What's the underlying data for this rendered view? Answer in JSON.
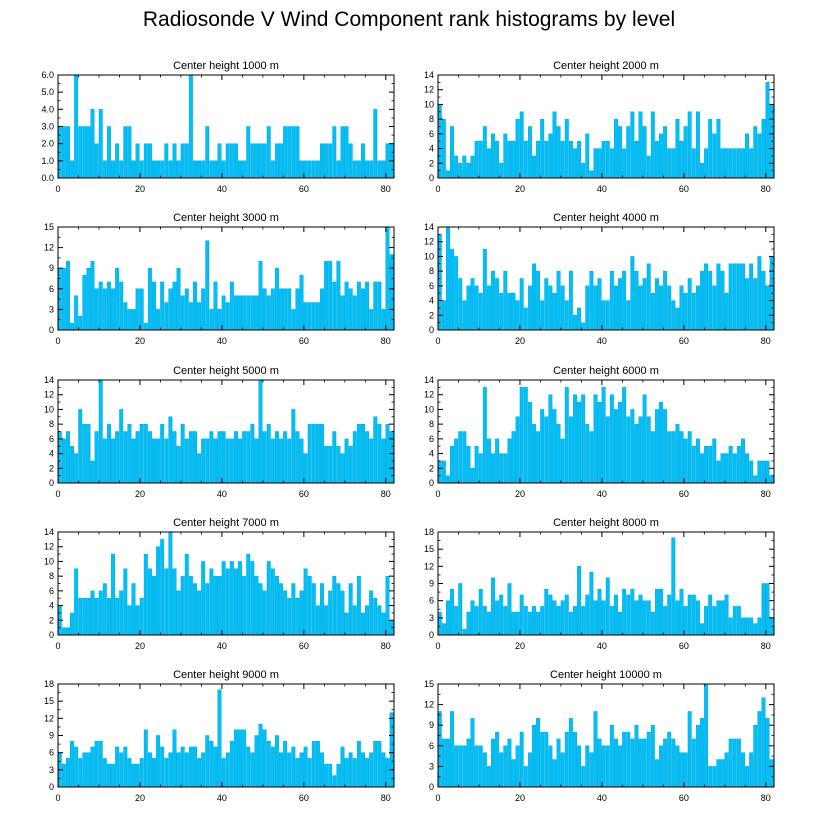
{
  "title": "Radiosonde V Wind Component rank histograms by level",
  "colors": {
    "bar": "#00c0f8",
    "bar_edge": "#0098d0",
    "axis": "#000000"
  },
  "chart_data": [
    {
      "type": "bar",
      "title": "Center height 1000 m",
      "xlim": [
        0,
        82
      ],
      "ylim": [
        0,
        6
      ],
      "xticks": [
        0,
        20,
        40,
        60,
        80
      ],
      "yticks": [
        0.0,
        1.0,
        2.0,
        3.0,
        4.0,
        5.0,
        6.0
      ],
      "ytick_labels": [
        "0.0",
        "1.0",
        "2.0",
        "3.0",
        "4.0",
        "5.0",
        "6.0"
      ],
      "values": [
        3,
        3,
        3,
        1,
        6,
        3,
        3,
        3,
        4,
        2,
        4,
        1,
        3,
        1,
        2,
        1,
        3,
        3,
        1,
        2,
        1,
        2,
        2,
        1,
        1,
        1,
        2,
        1,
        2,
        1,
        2,
        2,
        6,
        1,
        1,
        1,
        3,
        1,
        1,
        2,
        1,
        2,
        2,
        2,
        1,
        1,
        3,
        2,
        2,
        2,
        2,
        3,
        1,
        2,
        2,
        3,
        3,
        3,
        3,
        1,
        1,
        1,
        1,
        1,
        2,
        2,
        2,
        3,
        1,
        3,
        3,
        2,
        1,
        1,
        2,
        1,
        1,
        4,
        1,
        1,
        2,
        2
      ]
    },
    {
      "type": "bar",
      "title": "Center height 2000 m",
      "xlim": [
        0,
        82
      ],
      "ylim": [
        0,
        14
      ],
      "xticks": [
        0,
        20,
        40,
        60,
        80
      ],
      "yticks": [
        0,
        2,
        4,
        6,
        8,
        10,
        12,
        14
      ],
      "ytick_labels": [
        "0",
        "2",
        "4",
        "6",
        "8",
        "10",
        "12",
        "14"
      ],
      "values": [
        10,
        8,
        1,
        7,
        3,
        2,
        3,
        2,
        3,
        5,
        5,
        7,
        4,
        6,
        5,
        2,
        6,
        5,
        5,
        8,
        9,
        5,
        7,
        3,
        5,
        8,
        5,
        6,
        9,
        7,
        5,
        8,
        5,
        4,
        5,
        2,
        6,
        1,
        4,
        4,
        5,
        5,
        4,
        8,
        7,
        4,
        7,
        9,
        5,
        9,
        7,
        3,
        9,
        5,
        6,
        7,
        4,
        4,
        8,
        5,
        7,
        9,
        4,
        9,
        2,
        4,
        8,
        6,
        8,
        4,
        4,
        4,
        4,
        4,
        4,
        6,
        4,
        7,
        6,
        8,
        13,
        10
      ]
    },
    {
      "type": "bar",
      "title": "Center height 3000 m",
      "xlim": [
        0,
        82
      ],
      "ylim": [
        0,
        15
      ],
      "xticks": [
        0,
        20,
        40,
        60,
        80
      ],
      "yticks": [
        0,
        3,
        6,
        9,
        12,
        15
      ],
      "ytick_labels": [
        "0",
        "3",
        "6",
        "9",
        "12",
        "15"
      ],
      "values": [
        9,
        9,
        10,
        1,
        5,
        2,
        8,
        9,
        10,
        6,
        7,
        6,
        7,
        6,
        9,
        7,
        4,
        3,
        3,
        6,
        6,
        1,
        9,
        7,
        3,
        7,
        4,
        6,
        7,
        9,
        5,
        6,
        4,
        7,
        4,
        6,
        13,
        3,
        7,
        3,
        5,
        4,
        7,
        5,
        5,
        5,
        5,
        5,
        5,
        10,
        6,
        5,
        6,
        9,
        6,
        6,
        6,
        3,
        6,
        8,
        4,
        4,
        4,
        4,
        6,
        10,
        10,
        7,
        10,
        5,
        7,
        6,
        5,
        7,
        6,
        7,
        3,
        7,
        7,
        3,
        15,
        11
      ]
    },
    {
      "type": "bar",
      "title": "Center height 4000 m",
      "xlim": [
        0,
        82
      ],
      "ylim": [
        0,
        14
      ],
      "xticks": [
        0,
        20,
        40,
        60,
        80
      ],
      "yticks": [
        0,
        2,
        4,
        6,
        8,
        10,
        12,
        14
      ],
      "ytick_labels": [
        "0",
        "2",
        "4",
        "6",
        "8",
        "10",
        "12",
        "14"
      ],
      "values": [
        13,
        4,
        14,
        11,
        10,
        7,
        4,
        6,
        7,
        6,
        5,
        11,
        6,
        8,
        7,
        5,
        8,
        5,
        5,
        4,
        7,
        3,
        6,
        9,
        8,
        4,
        7,
        6,
        5,
        8,
        6,
        4,
        8,
        2,
        3,
        1,
        6,
        8,
        6,
        7,
        4,
        4,
        8,
        6,
        7,
        8,
        4,
        10,
        8,
        6,
        7,
        9,
        5,
        7,
        6,
        8,
        6,
        4,
        3,
        6,
        5,
        7,
        5,
        6,
        8,
        9,
        8,
        6,
        9,
        8,
        5,
        9,
        9,
        9,
        9,
        7,
        9,
        7,
        10,
        8,
        6,
        10
      ]
    },
    {
      "type": "bar",
      "title": "Center height 5000 m",
      "xlim": [
        0,
        82
      ],
      "ylim": [
        0,
        14
      ],
      "xticks": [
        0,
        20,
        40,
        60,
        80
      ],
      "yticks": [
        0,
        2,
        4,
        6,
        8,
        10,
        12,
        14
      ],
      "ytick_labels": [
        "0",
        "2",
        "4",
        "6",
        "8",
        "10",
        "12",
        "14"
      ],
      "values": [
        7,
        6,
        7,
        5,
        4,
        10,
        8,
        8,
        3,
        7,
        14,
        6,
        8,
        6,
        7,
        10,
        7,
        8,
        6,
        7,
        8,
        8,
        7,
        6,
        6,
        8,
        6,
        9,
        7,
        5,
        8,
        6,
        7,
        7,
        4,
        6,
        6,
        7,
        6,
        7,
        7,
        6,
        6,
        7,
        6,
        7,
        7,
        8,
        6,
        14,
        7,
        8,
        6,
        7,
        6,
        7,
        6,
        10,
        7,
        6,
        4,
        8,
        8,
        8,
        8,
        5,
        5,
        7,
        5,
        4,
        6,
        5,
        7,
        8,
        8,
        7,
        6,
        9,
        8,
        6,
        8,
        7
      ]
    },
    {
      "type": "bar",
      "title": "Center height 6000 m",
      "xlim": [
        0,
        82
      ],
      "ylim": [
        0,
        14
      ],
      "xticks": [
        0,
        20,
        40,
        60,
        80
      ],
      "yticks": [
        0,
        2,
        4,
        6,
        8,
        10,
        12,
        14
      ],
      "ytick_labels": [
        "0",
        "2",
        "4",
        "6",
        "8",
        "10",
        "12",
        "14"
      ],
      "values": [
        3,
        3,
        1,
        5,
        6,
        7,
        7,
        5,
        2,
        5,
        4,
        13,
        6,
        4,
        6,
        4,
        4,
        6,
        7,
        9,
        13,
        13,
        11,
        8,
        7,
        10,
        9,
        12,
        10,
        8,
        6,
        13,
        9,
        12,
        11,
        12,
        8,
        7,
        12,
        11,
        13,
        9,
        12,
        10,
        11,
        13,
        9,
        10,
        8,
        9,
        12,
        9,
        7,
        10,
        11,
        10,
        7,
        7,
        8,
        7,
        6,
        7,
        5,
        6,
        4,
        5,
        5,
        6,
        3,
        4,
        4,
        5,
        4,
        5,
        6,
        4,
        3,
        1,
        3,
        3,
        3,
        1
      ]
    },
    {
      "type": "bar",
      "title": "Center height 7000 m",
      "xlim": [
        0,
        82
      ],
      "ylim": [
        0,
        14
      ],
      "xticks": [
        0,
        20,
        40,
        60,
        80
      ],
      "yticks": [
        0,
        2,
        4,
        6,
        8,
        10,
        12,
        14
      ],
      "ytick_labels": [
        "0",
        "2",
        "4",
        "6",
        "8",
        "10",
        "12",
        "14"
      ],
      "values": [
        4,
        1,
        1,
        3,
        9,
        5,
        5,
        5,
        6,
        5,
        6,
        7,
        5,
        11,
        5,
        6,
        9,
        4,
        7,
        4,
        5,
        11,
        9,
        8,
        12,
        13,
        9,
        14,
        9,
        6,
        8,
        11,
        8,
        7,
        6,
        10,
        7,
        9,
        8,
        8,
        10,
        9,
        10,
        9,
        10,
        8,
        11,
        10,
        8,
        7,
        6,
        10,
        9,
        8,
        7,
        6,
        5,
        7,
        5,
        6,
        9,
        8,
        7,
        4,
        7,
        4,
        6,
        8,
        7,
        6,
        3,
        7,
        4,
        8,
        3,
        4,
        6,
        5,
        4,
        3,
        8,
        2
      ]
    },
    {
      "type": "bar",
      "title": "Center height 8000 m",
      "xlim": [
        0,
        82
      ],
      "ylim": [
        0,
        18
      ],
      "xticks": [
        0,
        20,
        40,
        60,
        80
      ],
      "yticks": [
        0,
        3,
        6,
        9,
        12,
        15,
        18
      ],
      "ytick_labels": [
        "0",
        "3",
        "6",
        "9",
        "12",
        "15",
        "18"
      ],
      "values": [
        4,
        2,
        6,
        8,
        5,
        9,
        1,
        4,
        6,
        5,
        8,
        5,
        4,
        10,
        6,
        7,
        5,
        9,
        4,
        4,
        7,
        5,
        4,
        5,
        4,
        5,
        8,
        7,
        6,
        5,
        6,
        7,
        4,
        5,
        12,
        5,
        7,
        11,
        6,
        8,
        6,
        10,
        5,
        7,
        4,
        8,
        7,
        8,
        6,
        7,
        6,
        6,
        4,
        8,
        8,
        5,
        7,
        17,
        6,
        8,
        5,
        7,
        7,
        6,
        2,
        5,
        7,
        5,
        6,
        6,
        7,
        3,
        5,
        5,
        3,
        3,
        3,
        2,
        3,
        9,
        9,
        3
      ]
    },
    {
      "type": "bar",
      "title": "Center height 9000 m",
      "xlim": [
        0,
        82
      ],
      "ylim": [
        0,
        18
      ],
      "xticks": [
        0,
        20,
        40,
        60,
        80
      ],
      "yticks": [
        0,
        3,
        6,
        9,
        12,
        15,
        18
      ],
      "ytick_labels": [
        "0",
        "3",
        "6",
        "9",
        "12",
        "15",
        "18"
      ],
      "values": [
        6,
        4,
        5,
        8,
        7,
        5,
        6,
        6,
        7,
        8,
        8,
        5,
        4,
        4,
        7,
        6,
        7,
        5,
        4,
        4,
        5,
        10,
        6,
        5,
        9,
        7,
        5,
        6,
        10,
        6,
        7,
        6,
        7,
        7,
        5,
        6,
        9,
        8,
        7,
        17,
        5,
        6,
        8,
        10,
        10,
        10,
        7,
        6,
        9,
        11,
        10,
        8,
        7,
        9,
        6,
        8,
        6,
        7,
        5,
        6,
        7,
        5,
        8,
        8,
        6,
        4,
        4,
        2,
        4,
        7,
        5,
        6,
        5,
        8,
        6,
        5,
        6,
        8,
        8,
        6,
        5,
        13
      ]
    },
    {
      "type": "bar",
      "title": "Center height 10000 m",
      "xlim": [
        0,
        82
      ],
      "ylim": [
        0,
        15
      ],
      "xticks": [
        0,
        20,
        40,
        60,
        80
      ],
      "yticks": [
        0,
        3,
        6,
        9,
        12,
        15
      ],
      "ytick_labels": [
        "0",
        "3",
        "6",
        "9",
        "12",
        "15"
      ],
      "values": [
        11,
        7,
        7,
        11,
        6,
        6,
        6,
        7,
        10,
        6,
        6,
        5,
        3,
        7,
        8,
        5,
        6,
        7,
        4,
        6,
        8,
        3,
        5,
        9,
        10,
        8,
        8,
        6,
        4,
        7,
        5,
        8,
        10,
        8,
        6,
        3,
        6,
        5,
        11,
        7,
        6,
        6,
        9,
        7,
        6,
        8,
        8,
        7,
        9,
        7,
        7,
        8,
        9,
        4,
        6,
        7,
        8,
        7,
        6,
        5,
        5,
        11,
        7,
        9,
        10,
        15,
        3,
        3,
        4,
        4,
        5,
        7,
        7,
        7,
        5,
        3,
        5,
        9,
        11,
        13,
        10,
        4
      ]
    }
  ]
}
